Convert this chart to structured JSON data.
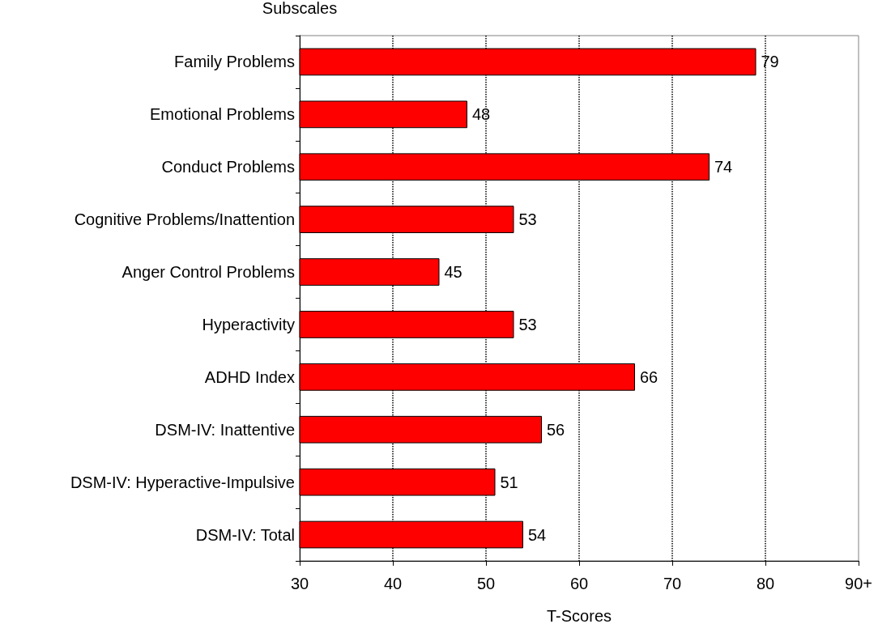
{
  "chart_data": {
    "type": "bar",
    "orientation": "horizontal",
    "ylabel": "Subscales",
    "xlabel": "T-Scores",
    "categories": [
      "Family Problems",
      "Emotional Problems",
      "Conduct Problems",
      "Cognitive Problems/Inattention",
      "Anger Control Problems",
      "Hyperactivity",
      "ADHD Index",
      "DSM-IV: Inattentive",
      "DSM-IV: Hyperactive-Impulsive",
      "DSM-IV: Total"
    ],
    "values": [
      79,
      48,
      74,
      53,
      45,
      53,
      66,
      56,
      51,
      54
    ],
    "color": "#ff0000",
    "xlim": [
      30,
      90
    ],
    "xticks": [
      30,
      40,
      50,
      60,
      70,
      80,
      {
        "value": 90,
        "label": "90+"
      }
    ],
    "grid": "x",
    "data_labels": true
  }
}
